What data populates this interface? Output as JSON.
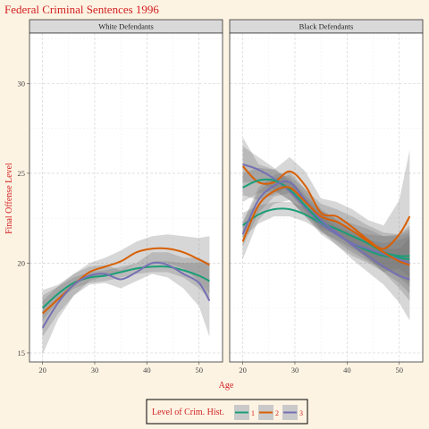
{
  "chart_data": {
    "type": "line",
    "title": "Federal Criminal Sentences 1996",
    "xlabel": "Age",
    "ylabel": "Final Offense Level",
    "xlim": [
      17.5,
      54.5
    ],
    "ylim": [
      14.5,
      32.8
    ],
    "x_ticks": [
      20,
      30,
      40,
      50
    ],
    "y_ticks": [
      15,
      20,
      25,
      30
    ],
    "grid": true,
    "legend": {
      "title": "Level of Crim. Hist.",
      "position": "bottom",
      "entries": [
        "1",
        "2",
        "3"
      ]
    },
    "colors": {
      "1": "#1b9e77",
      "2": "#d95f02",
      "3": "#7570b3"
    },
    "panels": [
      {
        "name": "White Defendants",
        "series": [
          {
            "name": "1",
            "x": [
              20,
              23,
              26,
              29,
              32,
              35,
              38,
              41,
              44,
              47,
              50,
              52
            ],
            "y": [
              17.5,
              18.3,
              18.9,
              19.2,
              19.3,
              19.5,
              19.7,
              19.8,
              19.8,
              19.6,
              19.3,
              19.0
            ],
            "ci_lower": [
              16.8,
              17.9,
              18.6,
              18.9,
              19.0,
              19.2,
              19.4,
              19.5,
              19.5,
              19.2,
              18.6,
              18.0
            ],
            "ci_upper": [
              18.2,
              18.7,
              19.2,
              19.5,
              19.6,
              19.8,
              20.0,
              20.1,
              20.1,
              20.0,
              20.0,
              20.0
            ]
          },
          {
            "name": "2",
            "x": [
              20,
              23,
              26,
              29,
              32,
              35,
              38,
              41,
              44,
              47,
              50,
              52
            ],
            "y": [
              17.2,
              18.0,
              18.8,
              19.5,
              19.8,
              20.1,
              20.6,
              20.8,
              20.8,
              20.6,
              20.2,
              19.9
            ],
            "ci_lower": [
              15.9,
              17.2,
              18.2,
              19.0,
              19.3,
              19.5,
              20.0,
              20.1,
              20.0,
              19.7,
              19.0,
              18.3
            ],
            "ci_upper": [
              18.5,
              18.8,
              19.4,
              20.0,
              20.3,
              20.7,
              21.2,
              21.5,
              21.6,
              21.5,
              21.4,
              21.5
            ]
          },
          {
            "name": "3",
            "x": [
              20,
              23,
              26,
              29,
              32,
              35,
              38,
              41,
              44,
              47,
              50,
              52
            ],
            "y": [
              16.4,
              17.8,
              18.8,
              19.3,
              19.4,
              19.1,
              19.5,
              20.0,
              19.9,
              19.4,
              18.9,
              17.9
            ],
            "ci_lower": [
              14.9,
              16.9,
              18.2,
              18.8,
              18.9,
              18.6,
              19.0,
              19.4,
              19.2,
              18.6,
              17.6,
              15.9
            ],
            "ci_upper": [
              17.9,
              18.7,
              19.4,
              19.8,
              19.9,
              19.6,
              20.0,
              20.6,
              20.6,
              20.3,
              20.3,
              20.0
            ]
          }
        ]
      },
      {
        "name": "Black Defendants",
        "series": [
          {
            "name": "1",
            "x": [
              20,
              23,
              26,
              29,
              32,
              35,
              38,
              41,
              44,
              47,
              50,
              52
            ],
            "y": [
              22.1,
              22.7,
              23.0,
              23.0,
              22.7,
              22.2,
              21.6,
              21.1,
              20.7,
              20.4,
              20.3,
              20.2
            ],
            "ci_lower": [
              21.4,
              22.2,
              22.6,
              22.6,
              22.3,
              21.8,
              21.2,
              20.6,
              20.1,
              19.7,
              19.3,
              18.9
            ],
            "ci_upper": [
              22.8,
              23.2,
              23.4,
              23.4,
              23.1,
              22.6,
              22.0,
              21.6,
              21.3,
              21.1,
              21.3,
              21.5
            ]
          },
          {
            "name": "2",
            "x": [
              20,
              23,
              26,
              29,
              32,
              35,
              38,
              41,
              44,
              47,
              50,
              52
            ],
            "y": [
              25.4,
              24.5,
              24.5,
              25.1,
              24.3,
              22.8,
              22.6,
              22.0,
              21.3,
              20.8,
              21.6,
              22.6
            ],
            "ci_lower": [
              23.8,
              23.5,
              23.8,
              24.3,
              23.5,
              22.0,
              21.8,
              21.0,
              20.2,
              19.5,
              19.7,
              19.2
            ],
            "ci_upper": [
              27.0,
              25.5,
              25.2,
              25.9,
              25.1,
              23.6,
              23.4,
              23.0,
              22.4,
              22.1,
              23.5,
              26.3
            ]
          },
          {
            "name": "3",
            "x": [
              20,
              23,
              26,
              29,
              32,
              35,
              38,
              41,
              44,
              47,
              50,
              52
            ],
            "y": [
              25.5,
              25.2,
              24.7,
              24.0,
              23.1,
              22.2,
              21.6,
              21.1,
              20.8,
              20.5,
              20.2,
              20.0
            ],
            "ci_lower": [
              24.5,
              24.5,
              24.1,
              23.5,
              22.6,
              21.6,
              21.0,
              20.4,
              20.0,
              19.5,
              18.9,
              18.3
            ],
            "ci_upper": [
              26.5,
              25.9,
              25.3,
              24.5,
              23.6,
              22.8,
              22.2,
              21.8,
              21.6,
              21.5,
              21.5,
              21.7
            ]
          },
          {
            "name": "1",
            "x": [
              20,
              23,
              26,
              29,
              32,
              35,
              38,
              41,
              44,
              47,
              50,
              52
            ],
            "y": [
              24.2,
              24.6,
              24.6,
              24.1,
              23.2,
              22.3,
              21.9,
              21.5,
              21.1,
              20.6,
              20.4,
              20.4
            ],
            "ci_lower": [
              23.4,
              23.9,
              24.0,
              23.5,
              22.6,
              21.7,
              21.3,
              20.8,
              20.3,
              19.7,
              19.2,
              18.7
            ],
            "ci_upper": [
              25.0,
              25.3,
              25.2,
              24.7,
              23.8,
              22.9,
              22.5,
              22.2,
              21.9,
              21.5,
              21.6,
              22.1
            ]
          },
          {
            "name": "3",
            "x": [
              20,
              23,
              26,
              29,
              32,
              35,
              38,
              41,
              44,
              47,
              50,
              52
            ],
            "y": [
              21.6,
              23.5,
              24.3,
              24.5,
              23.5,
              22.4,
              21.7,
              21.0,
              20.4,
              19.8,
              19.3,
              19.1
            ],
            "ci_lower": [
              20.9,
              22.8,
              23.7,
              23.9,
              22.9,
              21.8,
              21.0,
              20.2,
              19.5,
              18.8,
              17.8,
              16.8
            ],
            "ci_upper": [
              22.3,
              24.2,
              24.9,
              25.1,
              24.1,
              23.0,
              22.4,
              21.8,
              21.3,
              20.8,
              20.8,
              21.4
            ]
          },
          {
            "name": "2",
            "x": [
              20,
              23,
              26,
              29,
              32,
              35,
              38,
              41,
              44,
              47,
              50,
              52
            ],
            "y": [
              21.2,
              23.2,
              24.0,
              24.2,
              23.4,
              22.6,
              22.3,
              21.8,
              21.2,
              20.6,
              20.1,
              19.9
            ],
            "ci_lower": [
              20.2,
              22.4,
              23.3,
              23.5,
              22.7,
              21.9,
              21.6,
              21.0,
              20.3,
              19.5,
              18.6,
              17.9
            ],
            "ci_upper": [
              22.2,
              24.0,
              24.7,
              24.9,
              24.1,
              23.3,
              23.0,
              22.6,
              22.1,
              21.7,
              21.6,
              21.9
            ]
          }
        ]
      }
    ]
  }
}
